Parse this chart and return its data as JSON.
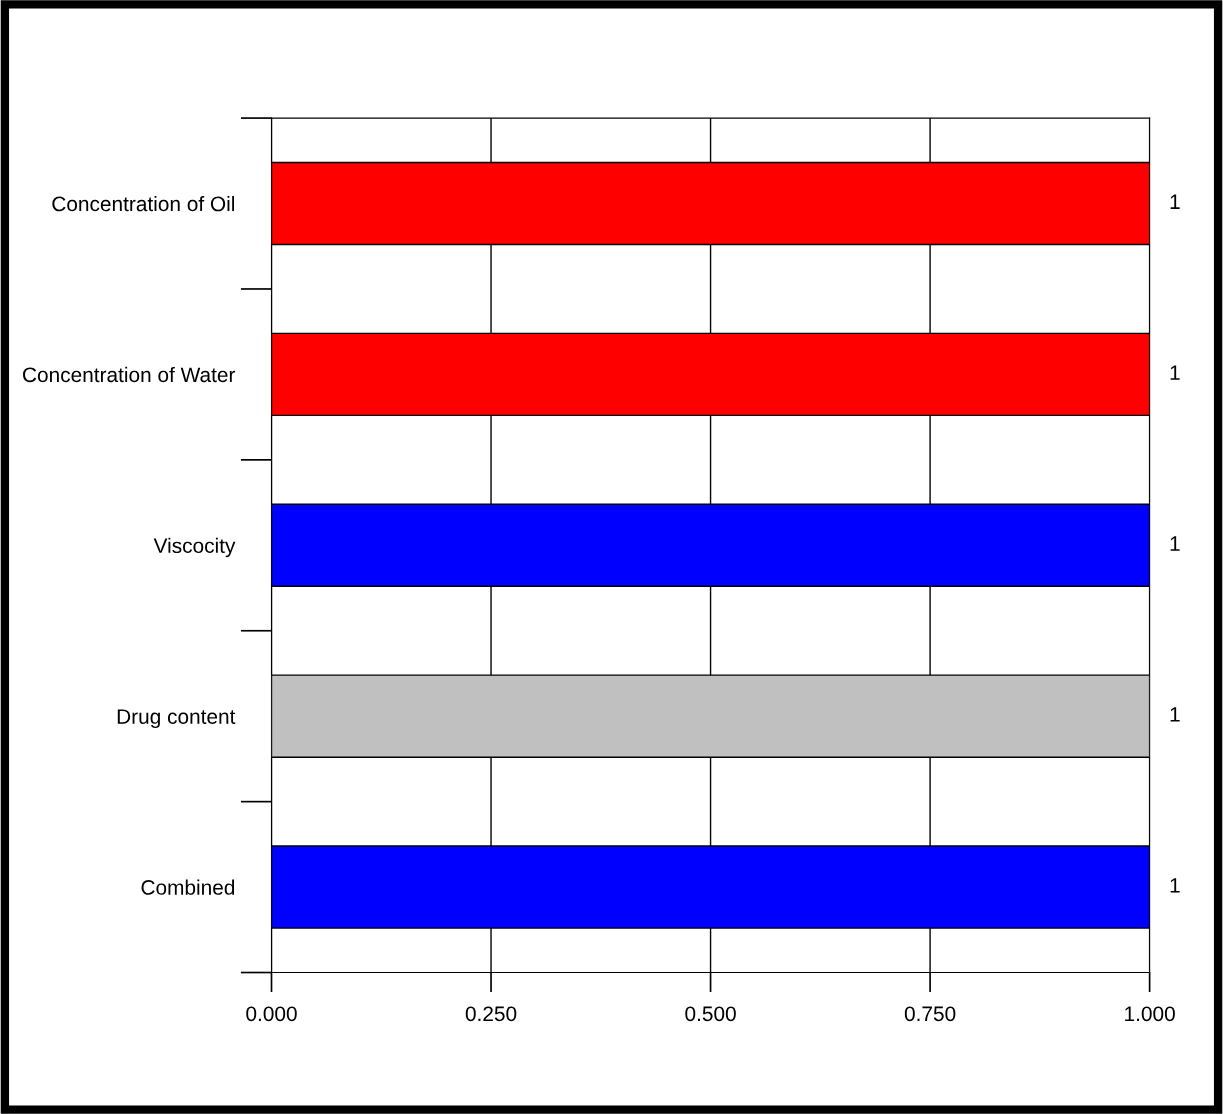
{
  "chart_data": {
    "type": "bar",
    "orientation": "horizontal",
    "categories": [
      "Concentration of Oil",
      "Concentration of Water",
      "Viscocity",
      "Drug content",
      "Combined"
    ],
    "values": [
      1,
      1,
      1,
      1,
      1
    ],
    "colors": [
      "#ff0000",
      "#ff0000",
      "#0000ff",
      "#c0c0c0",
      "#0000ff"
    ],
    "xlim": [
      0,
      1
    ],
    "xticks": [
      {
        "value": 0,
        "label": "0.000"
      },
      {
        "value": 0.25,
        "label": "0.250"
      },
      {
        "value": 0.5,
        "label": "0.500"
      },
      {
        "value": 0.75,
        "label": "0.750"
      },
      {
        "value": 1,
        "label": "1.000"
      }
    ],
    "grid": "x",
    "data_labels": true,
    "legend": false
  }
}
